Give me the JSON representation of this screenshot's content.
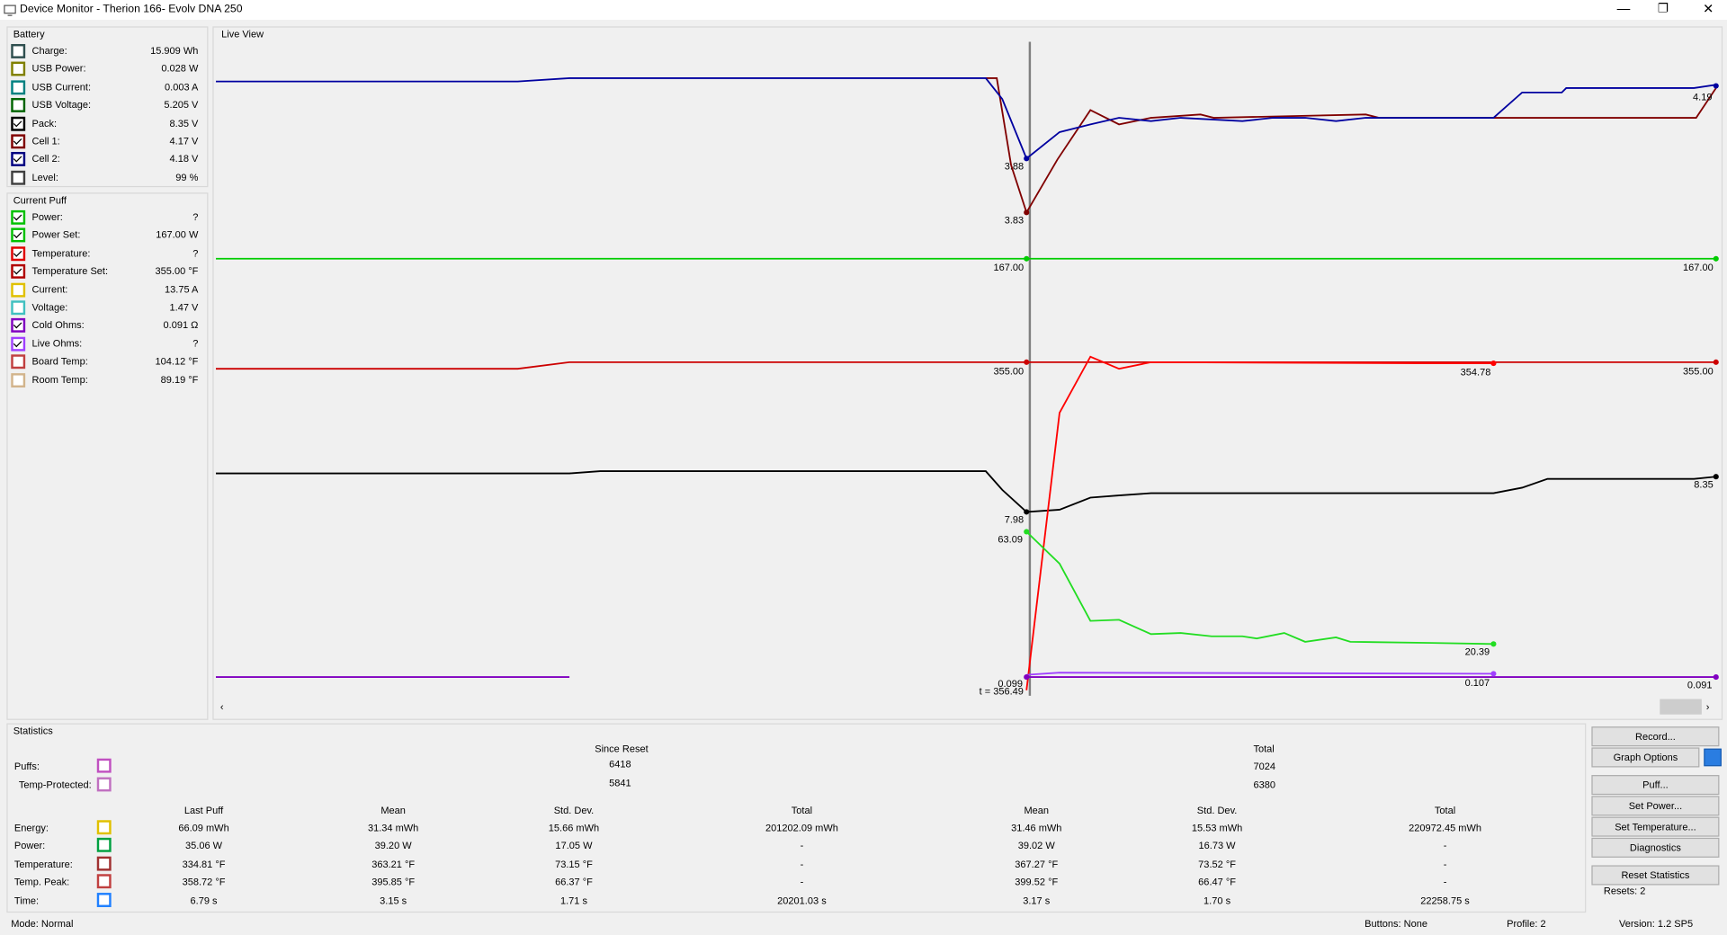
{
  "window": {
    "title": "Device Monitor - Therion 166- Evolv DNA 250"
  },
  "battery": {
    "title": "Battery",
    "rows": [
      {
        "label": "Charge:",
        "value": "15.909 Wh",
        "checked": false,
        "color": "#2f4f4f"
      },
      {
        "label": "USB Power:",
        "value": "0.028 W",
        "checked": false,
        "color": "#808000"
      },
      {
        "label": "USB Current:",
        "value": "0.003 A",
        "checked": false,
        "color": "#008080"
      },
      {
        "label": "USB Voltage:",
        "value": "5.205 V",
        "checked": false,
        "color": "#006400"
      },
      {
        "label": "Pack:",
        "value": "8.35 V",
        "checked": true,
        "color": "#000000"
      },
      {
        "label": "Cell 1:",
        "value": "4.17 V",
        "checked": true,
        "color": "#800000"
      },
      {
        "label": "Cell 2:",
        "value": "4.18 V",
        "checked": true,
        "color": "#000080"
      },
      {
        "label": "Level:",
        "value": "99 %",
        "checked": false,
        "color": "#404040"
      }
    ]
  },
  "current_puff": {
    "title": "Current Puff",
    "rows": [
      {
        "label": "Power:",
        "value": "?",
        "checked": true,
        "color": "#00c000"
      },
      {
        "label": "Power Set:",
        "value": "167.00 W",
        "checked": true,
        "color": "#00c000"
      },
      {
        "label": "Temperature:",
        "value": "?",
        "checked": true,
        "color": "#e00000"
      },
      {
        "label": "Temperature Set:",
        "value": "355.00 °F",
        "checked": true,
        "color": "#b00000"
      },
      {
        "label": "Current:",
        "value": "13.75 A",
        "checked": false,
        "color": "#e0c000"
      },
      {
        "label": "Voltage:",
        "value": "1.47 V",
        "checked": false,
        "color": "#40c0c0"
      },
      {
        "label": "Cold Ohms:",
        "value": "0.091 Ω",
        "checked": true,
        "color": "#8000c0"
      },
      {
        "label": "Live Ohms:",
        "value": "?",
        "checked": true,
        "color": "#a040ff"
      },
      {
        "label": "Board Temp:",
        "value": "104.12 °F",
        "checked": false,
        "color": "#c04040"
      },
      {
        "label": "Room Temp:",
        "value": "89.19 °F",
        "checked": false,
        "color": "#d2b48c"
      }
    ]
  },
  "live_view": {
    "title": "Live View",
    "labels": [
      "3.88",
      "3.83",
      "167.00",
      "167.00",
      "355.00",
      "354.78",
      "355.00",
      "7.98",
      "63.09",
      "8.35",
      "20.39",
      "0.107",
      "0.091",
      "4.19",
      "0.099",
      "t = 356.49"
    ]
  },
  "statistics": {
    "title": "Statistics",
    "since_reset": "Since Reset",
    "total": "Total",
    "counts": [
      {
        "label": "Puffs:",
        "color": "#c050c0",
        "since_reset": "6418",
        "total": "7024"
      },
      {
        "label": "Temp-Protected:",
        "color": "#c070c0",
        "since_reset": "5841",
        "total": "6380"
      }
    ],
    "headers": [
      "Last Puff",
      "Mean",
      "Std. Dev.",
      "Total",
      "Mean",
      "Std. Dev.",
      "Total"
    ],
    "rows": [
      {
        "label": "Energy:",
        "color": "#e0c000",
        "cells": [
          "66.09 mWh",
          "31.34 mWh",
          "15.66 mWh",
          "201202.09 mWh",
          "31.46 mWh",
          "15.53 mWh",
          "220972.45 mWh"
        ]
      },
      {
        "label": "Power:",
        "color": "#00a040",
        "cells": [
          "35.06 W",
          "39.20 W",
          "17.05 W",
          "-",
          "39.02 W",
          "16.73 W",
          "-"
        ]
      },
      {
        "label": "Temperature:",
        "color": "#a03030",
        "cells": [
          "334.81 °F",
          "363.21 °F",
          "73.15 °F",
          "-",
          "367.27 °F",
          "73.52 °F",
          "-"
        ]
      },
      {
        "label": "Temp. Peak:",
        "color": "#c04040",
        "cells": [
          "358.72 °F",
          "395.85 °F",
          "66.37 °F",
          "-",
          "399.52 °F",
          "66.47 °F",
          "-"
        ]
      },
      {
        "label": "Time:",
        "color": "#2080ff",
        "cells": [
          "6.79 s",
          "3.15 s",
          "1.71 s",
          "20201.03 s",
          "3.17 s",
          "1.70 s",
          "22258.75 s"
        ]
      }
    ]
  },
  "buttons": [
    "Record...",
    "Graph Options",
    "Puff...",
    "Set Power...",
    "Set Temperature...",
    "Diagnostics",
    "Reset Statistics"
  ],
  "resets": "Resets: 2",
  "status": {
    "mode": "Mode: Normal",
    "buttons": "Buttons: None",
    "profile": "Profile: 2",
    "version": "Version: 1.2 SP5"
  }
}
